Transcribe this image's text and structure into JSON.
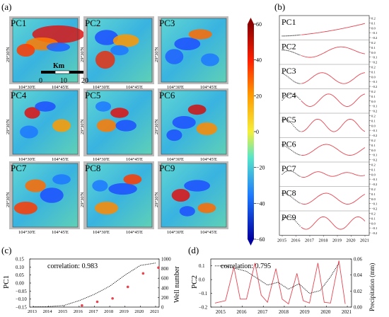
{
  "panels": {
    "a": "(a)",
    "b": "(b)",
    "c": "(c)",
    "d": "(d)"
  },
  "map": {
    "labels": [
      "PC1",
      "PC2",
      "PC3",
      "PC4",
      "PC5",
      "PC6",
      "PC7",
      "PC8",
      "PC9"
    ],
    "x_ticks": [
      "104°30'E",
      "104°45'E"
    ],
    "y_tick": "29°30'N",
    "scalebar": {
      "title": "Km",
      "ticks": [
        "0",
        "10",
        "20"
      ]
    }
  },
  "colorbar": {
    "ticks": [
      "60",
      "40",
      "20",
      "0",
      "−20",
      "−40",
      "−60"
    ],
    "colors": [
      "#8b0000",
      "#ff2000",
      "#ff9a00",
      "#f5ef3a",
      "#58e6c8",
      "#1d78ff",
      "#0000a0"
    ]
  },
  "timeseries": {
    "labels": [
      "PC1",
      "PC2",
      "PC3",
      "PC4",
      "PC5",
      "PC6",
      "PC7",
      "PC8",
      "PC9"
    ],
    "yticks": [
      "0.2",
      "0.1",
      "0.0",
      "−0.1",
      "−0.2"
    ],
    "xticks": [
      "2015",
      "2016",
      "2017",
      "2018",
      "2019",
      "2020",
      "2021"
    ],
    "color": "#e8434f"
  },
  "chart_data": [
    {
      "type": "line",
      "panel": "c",
      "annotation": "correlation: 0.983",
      "ylabel": "PC1",
      "y2label": "Well number",
      "x": [
        2013,
        2014,
        2015,
        2016,
        2017,
        2018,
        2019,
        2020,
        2021
      ],
      "xticks": [
        "2013",
        "2014",
        "2015",
        "2016",
        "2017",
        "2018",
        "2019",
        "2020",
        "2021"
      ],
      "ylim": [
        -0.15,
        0.15
      ],
      "yticks": [
        "0.15",
        "0.10",
        "0.05",
        "0.00",
        "−0.05",
        "−0.10",
        "−0.15"
      ],
      "y2lim": [
        0,
        1000
      ],
      "y2ticks": [
        "1000",
        "800",
        "600",
        "400",
        "200",
        "0"
      ],
      "series": [
        {
          "values": [
            -0.148,
            -0.147,
            -0.14,
            -0.11,
            -0.07,
            -0.02,
            0.05,
            0.11,
            0.125
          ]
        },
        {
          "values": [
            null,
            null,
            null,
            35,
            110,
            180,
            420,
            700,
            820
          ]
        }
      ]
    },
    {
      "type": "line",
      "panel": "d",
      "annotation": "correlation: 0.795",
      "ylabel": "PC2",
      "y2label": "Precipitation (mm)",
      "xlim": [
        2014.5,
        2021.2
      ],
      "xticks": [
        "2015",
        "2016",
        "2017",
        "2018",
        "2019",
        "2020",
        "2021"
      ],
      "ylim": [
        -0.2,
        0.15
      ],
      "yticks": [
        "0.1",
        "0.0",
        "−0.1",
        "−0.2"
      ],
      "y2lim": [
        0,
        0.06
      ],
      "y2ticks": [
        "0.06",
        "0.04",
        "0.02",
        "0.00"
      ],
      "series": [
        {
          "x": [
            2014.7,
            2015.2,
            2015.7,
            2016.2,
            2016.7,
            2017.2,
            2017.7,
            2018.2,
            2018.7,
            2019.2,
            2019.7,
            2020.2,
            2020.6
          ],
          "values": [
            0.1,
            0.1,
            0.08,
            0.06,
            0.01,
            -0.04,
            -0.02,
            -0.07,
            -0.03,
            -0.1,
            -0.08,
            0.02,
            0.12
          ]
        },
        {
          "x": [
            2014.7,
            2015.2,
            2015.6,
            2015.9,
            2016.2,
            2016.6,
            2016.9,
            2017.2,
            2017.6,
            2017.9,
            2018.2,
            2018.6,
            2018.9,
            2019.2,
            2019.6,
            2019.9,
            2020.2,
            2020.6,
            2020.9
          ],
          "values": [
            0.005,
            0.008,
            0.05,
            0.01,
            0.01,
            0.055,
            0.015,
            0.006,
            0.048,
            0.01,
            0.004,
            0.042,
            0.008,
            0.005,
            0.055,
            0.006,
            0.005,
            0.058,
            0.004
          ]
        }
      ]
    }
  ]
}
